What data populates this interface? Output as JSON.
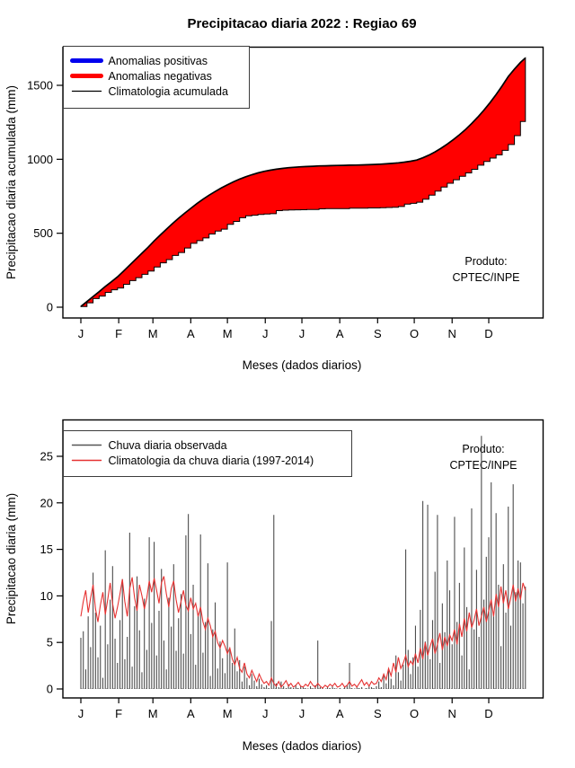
{
  "title": "Precipitacao diaria 2022 : Regiao 69",
  "chart_data": [
    {
      "id": "cumulative-precip",
      "type": "area",
      "xlabel": "Meses (dados diarios)",
      "ylabel": "Precipitacao diaria acumulada (mm)",
      "note_line1": "Produto:",
      "note_line2": "CPTEC/INPE",
      "x_ticks": [
        "J",
        "F",
        "M",
        "A",
        "M",
        "J",
        "J",
        "A",
        "S",
        "O",
        "N",
        "D"
      ],
      "x_tick_days": [
        1,
        32,
        60,
        91,
        121,
        152,
        182,
        213,
        244,
        274,
        305,
        335
      ],
      "y_ticks": [
        0,
        500,
        1000,
        1500
      ],
      "ylim": [
        0,
        1690
      ],
      "xlim_days": [
        1,
        365
      ],
      "legend": [
        {
          "label": "Anomalias positivas",
          "color": "#0000ee",
          "width": 5
        },
        {
          "label": "Anomalias negativas",
          "color": "#ff0000",
          "width": 5
        },
        {
          "label": "Climatologia acumulada",
          "color": "#000000",
          "width": 1.3
        }
      ],
      "colors": {
        "fill": "#ff0000",
        "clim_line": "#000000",
        "border": "#000000"
      },
      "days": [
        1,
        6,
        11,
        16,
        21,
        26,
        31,
        36,
        41,
        46,
        51,
        56,
        61,
        66,
        71,
        76,
        81,
        86,
        91,
        96,
        101,
        106,
        111,
        116,
        121,
        126,
        131,
        136,
        141,
        146,
        151,
        156,
        161,
        166,
        171,
        176,
        181,
        186,
        191,
        196,
        201,
        206,
        211,
        216,
        221,
        226,
        231,
        236,
        241,
        246,
        251,
        256,
        261,
        266,
        271,
        276,
        281,
        286,
        291,
        296,
        301,
        306,
        311,
        316,
        321,
        326,
        331,
        336,
        341,
        346,
        351,
        356,
        361,
        365
      ],
      "climatology_accum_mm": [
        5,
        38,
        72,
        105,
        140,
        172,
        205,
        245,
        285,
        325,
        365,
        405,
        448,
        488,
        527,
        565,
        601,
        635,
        668,
        700,
        730,
        757,
        782,
        806,
        828,
        848,
        866,
        882,
        896,
        908,
        918,
        926,
        933,
        938,
        943,
        946,
        949,
        951,
        953,
        955,
        956,
        957,
        958,
        959,
        960,
        961,
        962,
        963,
        965,
        967,
        969,
        972,
        976,
        981,
        987,
        995,
        1010,
        1028,
        1050,
        1075,
        1103,
        1133,
        1166,
        1202,
        1242,
        1285,
        1332,
        1383,
        1438,
        1497,
        1560,
        1610,
        1655,
        1685
      ],
      "observed_accum_mm": [
        4,
        30,
        58,
        75,
        100,
        118,
        130,
        155,
        180,
        200,
        222,
        245,
        272,
        300,
        322,
        350,
        370,
        400,
        432,
        450,
        468,
        495,
        515,
        528,
        560,
        580,
        605,
        618,
        622,
        627,
        630,
        632,
        653,
        656,
        657,
        658,
        659,
        660,
        660,
        665,
        666,
        666,
        666,
        667,
        670,
        670,
        670,
        671,
        671,
        672,
        674,
        676,
        681,
        697,
        702,
        710,
        730,
        758,
        785,
        812,
        838,
        862,
        885,
        908,
        932,
        960,
        985,
        1008,
        1030,
        1060,
        1100,
        1160,
        1255,
        1345
      ]
    },
    {
      "id": "daily-precip",
      "type": "bar+line",
      "xlabel": "Meses (dados diarios)",
      "ylabel": "Precipitacao diaria (mm)",
      "note_line1": "Produto:",
      "note_line2": "CPTEC/INPE",
      "x_ticks": [
        "J",
        "F",
        "M",
        "A",
        "M",
        "J",
        "J",
        "A",
        "S",
        "O",
        "N",
        "D"
      ],
      "x_tick_days": [
        1,
        32,
        60,
        91,
        121,
        152,
        182,
        213,
        244,
        274,
        305,
        335
      ],
      "y_ticks": [
        0,
        5,
        10,
        15,
        20,
        25
      ],
      "ylim": [
        0,
        27.8
      ],
      "xlim_days": [
        1,
        365
      ],
      "legend": [
        {
          "label": "Chuva diaria observada",
          "color": "#555555",
          "width": 1.4
        },
        {
          "label": "Climatologia da chuva diaria (1997-2014)",
          "color": "#e63232",
          "width": 1.4
        }
      ],
      "colors": {
        "bars": "#4d4d4d",
        "clim_line": "#e63232",
        "zero_line": "#aaaaaa"
      },
      "day_step": 2,
      "start_day": 1,
      "observed_daily_mm": [
        5.5,
        6.2,
        2.1,
        7.8,
        4.5,
        12.5,
        8.2,
        3.4,
        6.8,
        1.2,
        14.9,
        4.8,
        9.6,
        13.2,
        5.4,
        2.8,
        7.4,
        11.8,
        3.2,
        5.6,
        16.8,
        2.4,
        8.9,
        12.1,
        6.3,
        1.8,
        9.7,
        4.2,
        16.3,
        7.1,
        15.8,
        3.6,
        8.4,
        12.9,
        5.2,
        2.1,
        9.8,
        6.7,
        13.4,
        4.1,
        7.6,
        10.2,
        3.8,
        16.5,
        18.8,
        5.9,
        11.2,
        2.6,
        8.1,
        16.6,
        3.9,
        7.2,
        13.5,
        1.4,
        6.4,
        9.3,
        2.2,
        5.1,
        3.3,
        1.7,
        13.6,
        4.2,
        2.8,
        6.5,
        1.9,
        3.1,
        0.8,
        2.4,
        1.2,
        0.4,
        1.6,
        0.9,
        0.3,
        1.1,
        0.5,
        0.2,
        0.4,
        0.1,
        7.3,
        18.7,
        0.6,
        0.2,
        0.8,
        0.3,
        0.1,
        0.5,
        0.2,
        0.1,
        0.4,
        0.1,
        0.3,
        0.2,
        0.1,
        0,
        0.3,
        0.1,
        0.4,
        5.2,
        0.2,
        0.1,
        0,
        0.2,
        0.1,
        0.3,
        0.1,
        0,
        0.1,
        0,
        0.2,
        0.4,
        2.8,
        0.1,
        0,
        0.3,
        0.1,
        0.2,
        0,
        0.1,
        0.4,
        0.2,
        0.1,
        0.3,
        0.8,
        0.2,
        1.4,
        0.6,
        2.2,
        1.1,
        0.4,
        3.6,
        1.8,
        0.9,
        2.6,
        15.0,
        4.2,
        1.6,
        3.4,
        6.8,
        2.4,
        8.5,
        20.2,
        5.1,
        19.8,
        3.2,
        7.4,
        12.6,
        18.7,
        2.8,
        9.2,
        6.1,
        13.8,
        10.6,
        4.8,
        18.5,
        7.2,
        11.4,
        3.6,
        15.2,
        8.8,
        2.1,
        19.4,
        6.4,
        12.8,
        5.6,
        27.2,
        9.6,
        14.2,
        16.3,
        22.2,
        7.8,
        18.9,
        11.2,
        4.6,
        13.4,
        8.2,
        19.6,
        6.8,
        22.0,
        10.4,
        13.8,
        13.6,
        9.2,
        11.0
      ],
      "climatology_daily_mm": [
        7.8,
        9.4,
        10.6,
        8.2,
        9.8,
        11.2,
        8.6,
        7.2,
        9.0,
        10.4,
        8.0,
        9.6,
        11.4,
        9.2,
        7.6,
        8.8,
        10.2,
        11.8,
        9.4,
        7.8,
        10.8,
        12.0,
        9.8,
        8.4,
        11.2,
        10.0,
        8.6,
        9.8,
        11.6,
        10.4,
        11.9,
        10.6,
        9.2,
        11.4,
        12.1,
        10.2,
        8.8,
        10.8,
        11.6,
        9.6,
        8.2,
        9.4,
        10.6,
        9.0,
        8.4,
        9.8,
        8.6,
        9.2,
        7.8,
        8.8,
        7.2,
        6.4,
        7.6,
        6.8,
        5.6,
        6.2,
        5.0,
        4.4,
        5.2,
        4.6,
        3.8,
        4.4,
        3.2,
        2.6,
        3.4,
        2.2,
        1.8,
        2.8,
        1.6,
        1.2,
        2.0,
        1.4,
        0.8,
        1.6,
        1.0,
        0.6,
        0.8,
        0.4,
        1.2,
        0.6,
        0.3,
        0.8,
        0.2,
        0.5,
        0.9,
        0.3,
        0.6,
        0.2,
        0.4,
        0.7,
        0.3,
        0.2,
        0.5,
        0.3,
        0.8,
        0.4,
        0.2,
        0.6,
        0.3,
        0.1,
        0.4,
        0.2,
        0.5,
        0.3,
        0.6,
        0.2,
        0.3,
        0.6,
        0.2,
        0.4,
        0.8,
        0.3,
        0.5,
        0.2,
        0.6,
        1.0,
        0.4,
        0.7,
        0.3,
        0.8,
        0.5,
        0.6,
        1.2,
        0.8,
        1.6,
        1.0,
        2.2,
        1.4,
        2.8,
        1.8,
        3.4,
        2.2,
        2.8,
        3.6,
        2.4,
        3.0,
        2.6,
        3.8,
        2.8,
        4.4,
        3.2,
        5.0,
        3.6,
        4.6,
        5.4,
        3.8,
        4.8,
        6.0,
        4.2,
        5.6,
        4.6,
        5.8,
        5.2,
        6.4,
        4.8,
        7.0,
        5.6,
        7.6,
        6.2,
        8.2,
        6.6,
        7.4,
        8.6,
        6.8,
        7.8,
        8.8,
        7.2,
        8.4,
        9.6,
        7.8,
        10.2,
        8.8,
        11.0,
        9.2,
        10.6,
        8.6,
        9.8,
        11.2,
        9.4,
        10.8,
        9.6,
        11.4,
        10.6
      ]
    }
  ]
}
